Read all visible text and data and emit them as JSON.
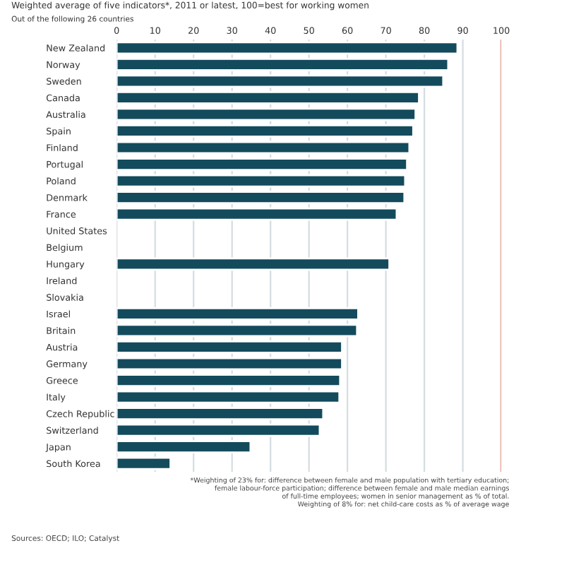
{
  "chart_data": {
    "type": "bar",
    "orientation": "horizontal",
    "subtitle": "Weighted average of five indicators*, 2011 or latest, 100=best for working women",
    "categories": [
      "New Zealand",
      "Norway",
      "Sweden",
      "Canada",
      "Australia",
      "Spain",
      "Finland",
      "Portugal",
      "Poland",
      "Denmark",
      "France",
      "United States",
      "Belgium",
      "Hungary",
      "Ireland",
      "Slovakia",
      "Israel",
      "Britain",
      "Austria",
      "Germany",
      "Greece",
      "Italy",
      "Czech Republic",
      "Switzerland",
      "Japan",
      "South Korea"
    ],
    "values": [
      88.6,
      86.2,
      84.9,
      78.6,
      77.7,
      77.1,
      76.1,
      75.5,
      75.0,
      74.8,
      72.8,
      null,
      null,
      70.9,
      null,
      null,
      62.8,
      62.5,
      58.6,
      58.6,
      58.1,
      57.9,
      53.7,
      52.8,
      34.8,
      14.0
    ],
    "color": "#134b5c",
    "xlim": [
      0,
      100
    ],
    "xticks": [
      0,
      10,
      20,
      30,
      40,
      50,
      60,
      70,
      80,
      90,
      100
    ],
    "grid": "x",
    "ref_lines": [
      {
        "axis": "x",
        "value": 100,
        "color": "#e8a7a0"
      }
    ],
    "annotations": [
      "Out of the following 26 countries",
      "*Weighting of 23% for: difference between female and male population with tertiary education;\nfemale labour-force participation; difference between female and male median earnings\nof full-time employees; women in senior management as % of total.\nWeighting of 8% for: net child-care costs as % of average wage",
      "Sources: OECD; ILO; Catalyst"
    ]
  }
}
